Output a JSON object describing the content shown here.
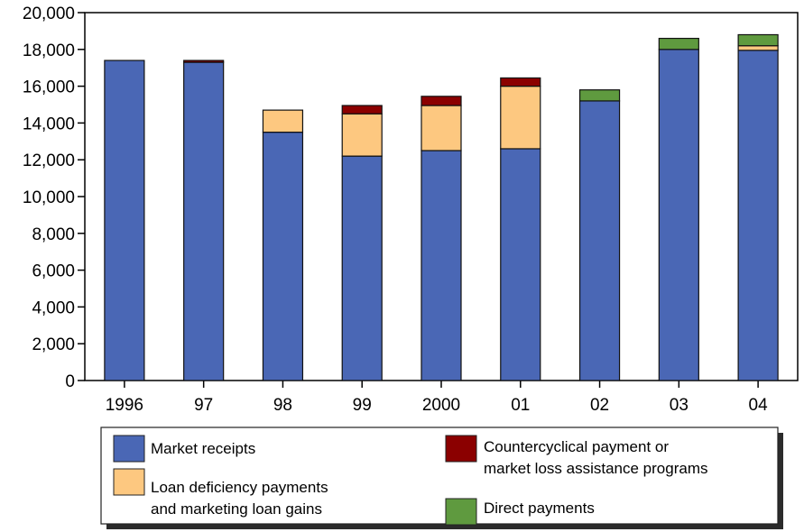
{
  "chart_data": {
    "type": "bar",
    "stacked": true,
    "categories": [
      "1996",
      "97",
      "98",
      "99",
      "2000",
      "01",
      "02",
      "03",
      "04"
    ],
    "series": [
      {
        "name": "Market receipts",
        "color": "#4a67b5",
        "values": [
          17400,
          17300,
          13500,
          12200,
          12500,
          12600,
          15200,
          18000,
          17950
        ]
      },
      {
        "name": "Loan deficiency payments and marketing loan gains",
        "color": "#fdc880",
        "values": [
          0,
          0,
          1200,
          2300,
          2450,
          3400,
          0,
          0,
          250
        ]
      },
      {
        "name": "Countercyclical payment or market loss assistance programs",
        "color": "#8b0000",
        "values": [
          0,
          100,
          0,
          450,
          500,
          450,
          0,
          0,
          0
        ]
      },
      {
        "name": "Direct payments",
        "color": "#5f9a3f",
        "values": [
          0,
          0,
          0,
          0,
          0,
          0,
          600,
          600,
          600
        ]
      }
    ],
    "yticks": [
      "0",
      "2,000",
      "4,000",
      "6,000",
      "8,000",
      "10,000",
      "12,000",
      "14,000",
      "16,000",
      "18,000",
      "20,000"
    ],
    "ylim": [
      0,
      20000
    ],
    "grid": false,
    "legend_position": "bottom",
    "legend": {
      "items": [
        {
          "series": 0,
          "lines": [
            "Market receipts"
          ]
        },
        {
          "series": 1,
          "lines": [
            "Loan deficiency payments",
            "and marketing loan gains"
          ]
        },
        {
          "series": 2,
          "lines": [
            "Countercyclical payment or",
            "market loss assistance programs"
          ]
        },
        {
          "series": 3,
          "lines": [
            "Direct payments"
          ]
        }
      ]
    }
  }
}
